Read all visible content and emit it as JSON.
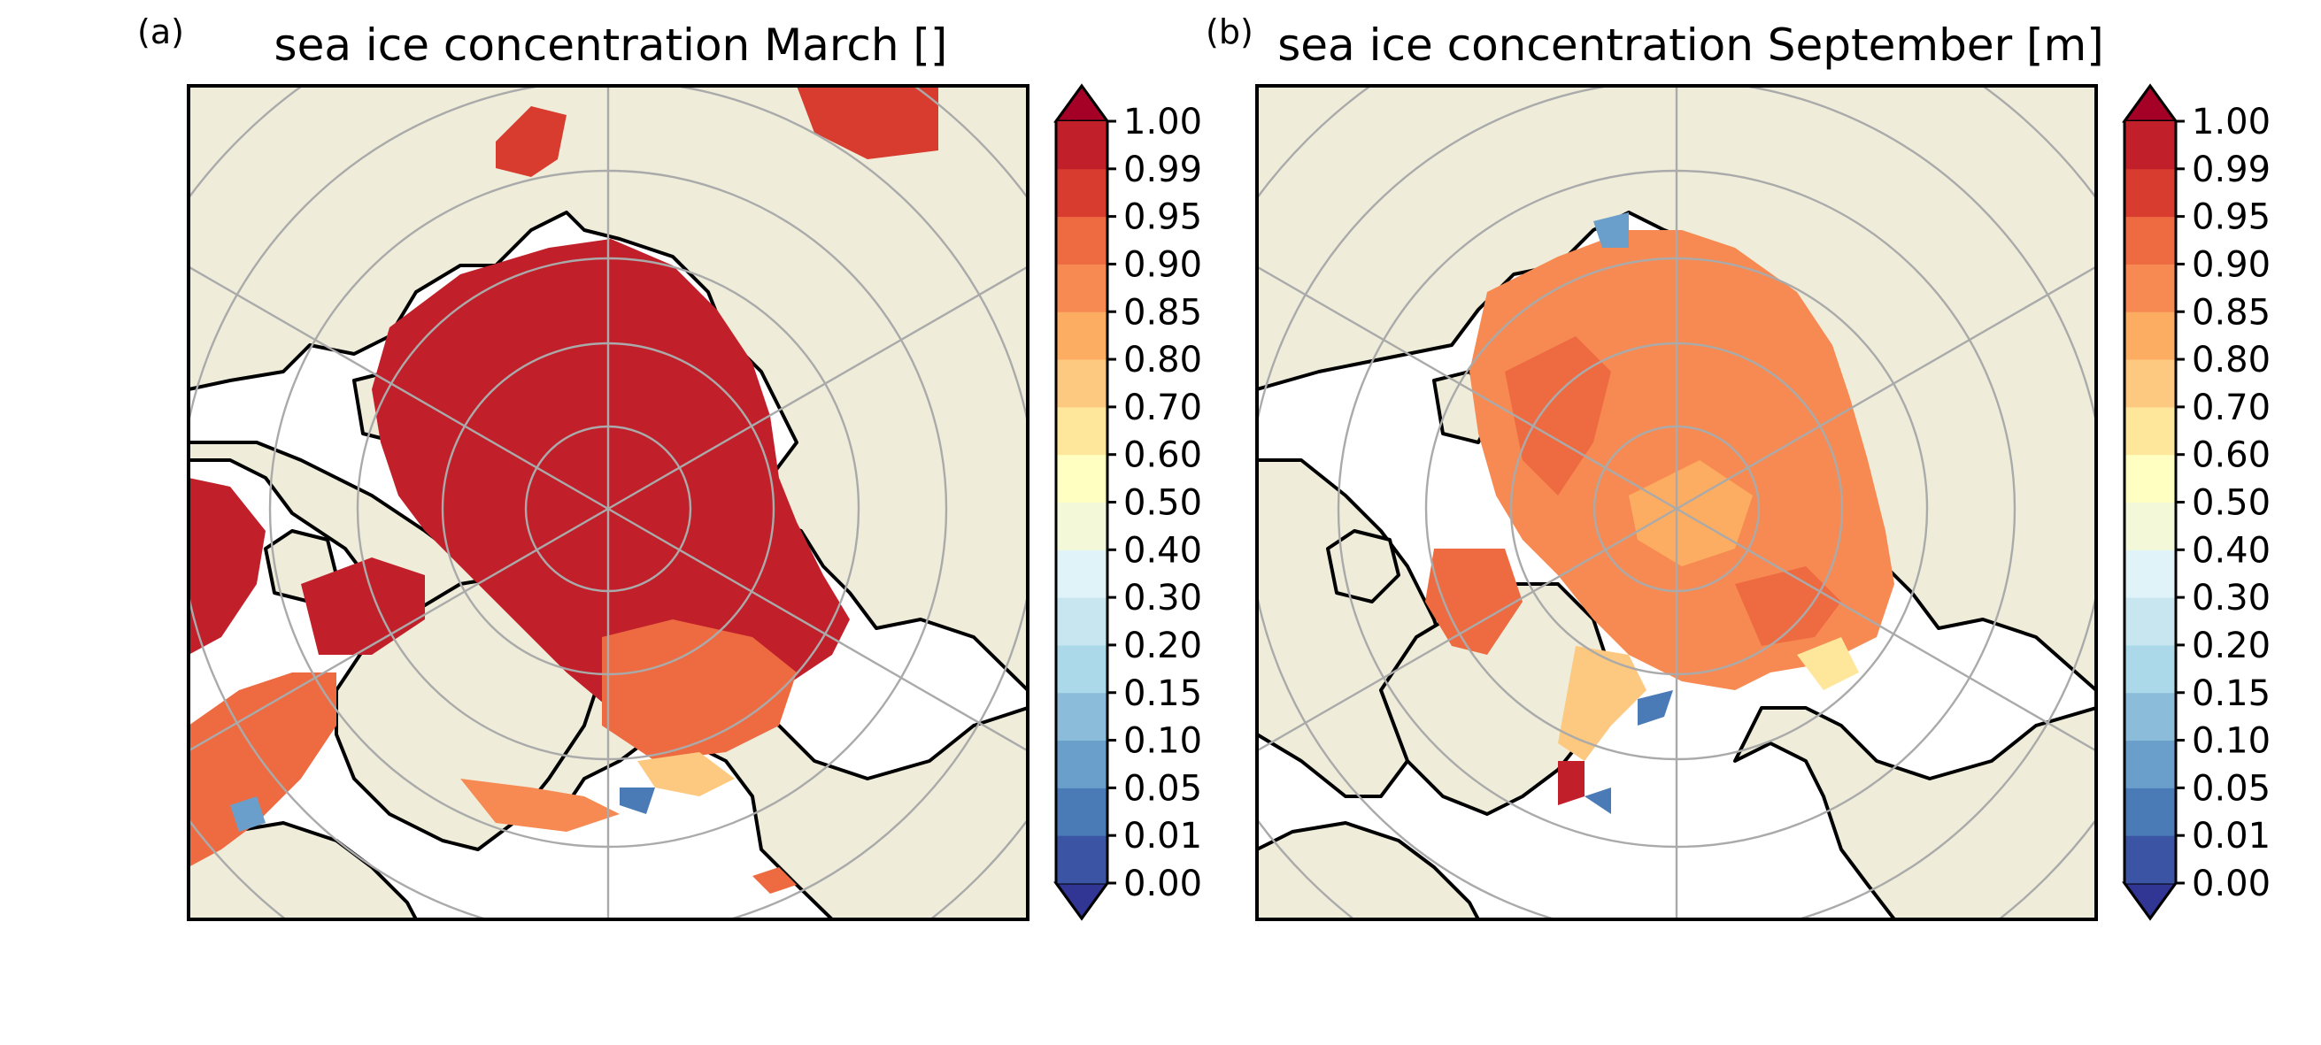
{
  "panels": [
    {
      "label": "(a)",
      "title": "sea ice concentration March []",
      "map": {
        "projection": "north-polar-stereographic",
        "land_color": "#efedda",
        "ocean_color": "#ffffff",
        "ice_dominant_color": "#c12227",
        "description_values": "ice concentration field, mostly 0.99 over central Arctic"
      }
    },
    {
      "label": "(b)",
      "title": "sea ice concentration September [m]",
      "map": {
        "projection": "north-polar-stereographic",
        "land_color": "#efedda",
        "ocean_color": "#ffffff",
        "ice_dominant_color": "#f57f4a",
        "description_values": "ice concentration field, mostly 0.85-0.95 over central Arctic"
      }
    }
  ],
  "colorbar": {
    "ticks": [
      "0.00",
      "0.01",
      "0.05",
      "0.10",
      "0.15",
      "0.20",
      "0.30",
      "0.40",
      "0.50",
      "0.60",
      "0.70",
      "0.80",
      "0.85",
      "0.90",
      "0.95",
      "0.99",
      "1.00"
    ],
    "colors": [
      "#3b54a4",
      "#4a7bb7",
      "#6a9fcb",
      "#8bbdda",
      "#abd9e9",
      "#c7e6f0",
      "#e0f3f8",
      "#f3f9d8",
      "#feffc0",
      "#fee79a",
      "#fdc87f",
      "#fdad61",
      "#f78a52",
      "#ee6b42",
      "#d83c2e",
      "#c1202b"
    ],
    "under_color": "#313695",
    "over_color": "#a50026"
  }
}
